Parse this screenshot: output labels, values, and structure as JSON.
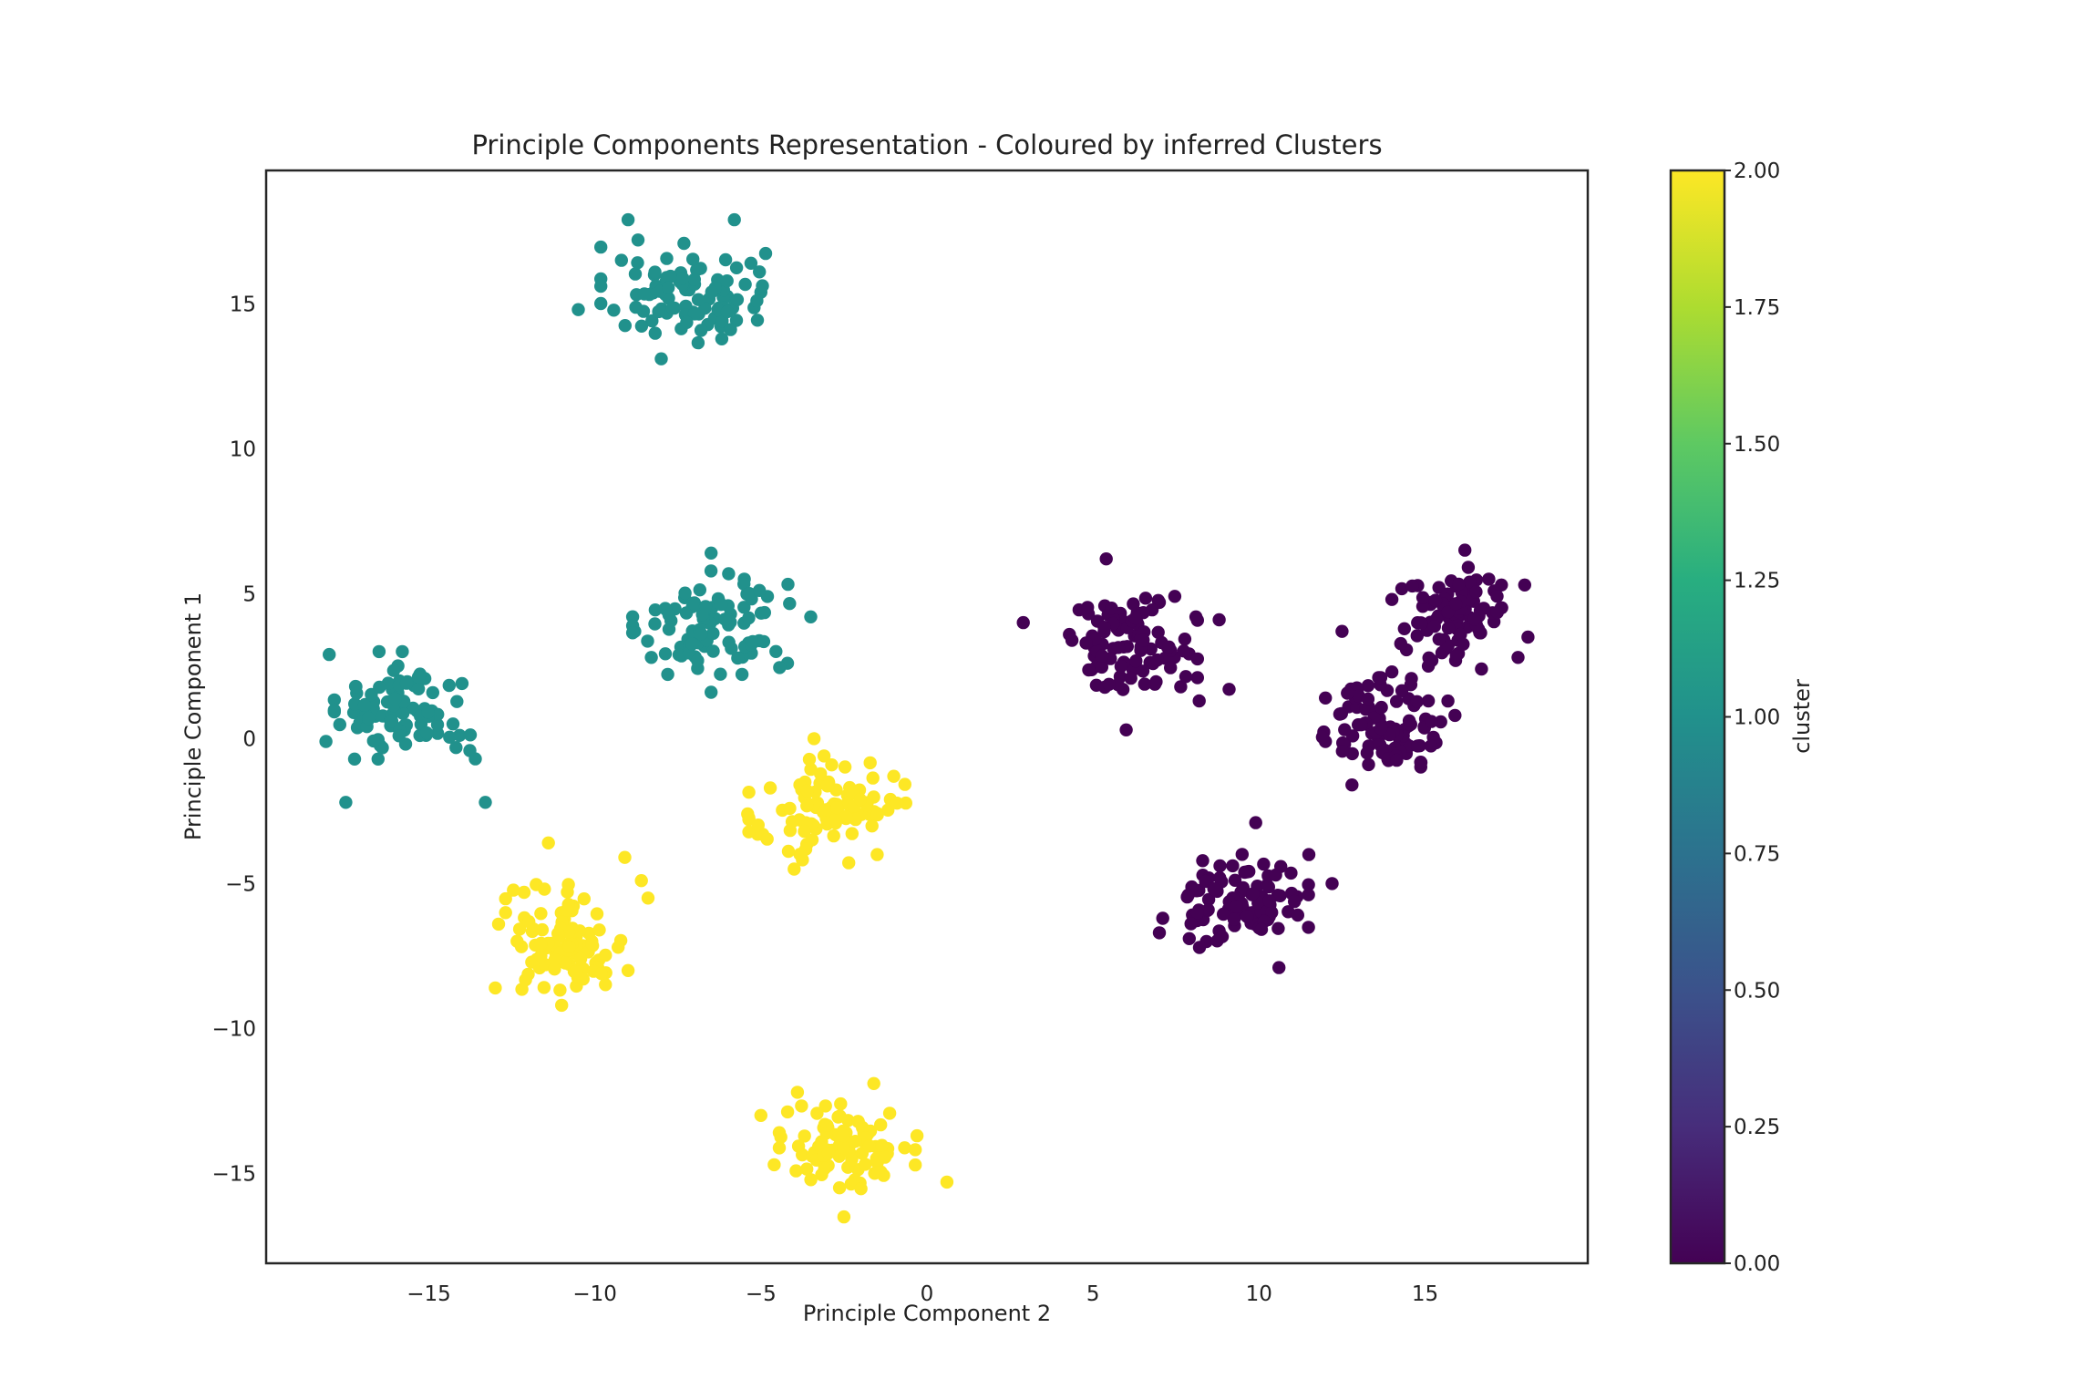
{
  "chart_data": {
    "type": "scatter",
    "title": "Principle Components Representation - Coloured by inferred Clusters",
    "xlabel": "Principle Component 2",
    "ylabel": "Principle Component 1",
    "xlim": [
      -19.9,
      19.9
    ],
    "ylim": [
      -18.1,
      19.6
    ],
    "xticks": [
      -15,
      -10,
      -5,
      0,
      5,
      10,
      15
    ],
    "xtick_labels": [
      "−15",
      "−10",
      "−5",
      "0",
      "5",
      "10",
      "15"
    ],
    "yticks": [
      -15,
      -10,
      -5,
      0,
      5,
      10,
      15
    ],
    "ytick_labels": [
      "−15",
      "−10",
      "−5",
      "0",
      "5",
      "10",
      "15"
    ],
    "grid": false,
    "colorbar": {
      "label": "cluster",
      "colormap": "viridis",
      "range": [
        0,
        2
      ],
      "ticks": [
        0,
        0.25,
        0.5,
        0.75,
        1,
        1.25,
        1.5,
        1.75,
        2
      ],
      "tick_labels": [
        "0.00",
        "0.25",
        "0.50",
        "0.75",
        "1.00",
        "1.25",
        "1.50",
        "1.75",
        "2.00"
      ]
    },
    "colors": {
      "cluster_0": "#440154",
      "cluster_1": "#21918c",
      "cluster_2": "#fde725"
    },
    "groups": [
      {
        "cluster": 1,
        "center": [
          -7.3,
          15.3
        ],
        "spread": [
          1.6,
          1.0
        ],
        "count": 100,
        "points": [
          [
            -9.0,
            17.9
          ],
          [
            -5.8,
            17.9
          ],
          [
            -10.5,
            14.8
          ],
          [
            -8.0,
            13.1
          ],
          [
            -8.7,
            17.2
          ],
          [
            -5.3,
            16.4
          ],
          [
            -5.0,
            15.4
          ],
          [
            -9.2,
            16.5
          ]
        ]
      },
      {
        "cluster": 1,
        "center": [
          -6.5,
          4.0
        ],
        "spread": [
          1.5,
          1.0
        ],
        "count": 100,
        "points": [
          [
            -6.5,
            6.4
          ],
          [
            -8.3,
            2.8
          ],
          [
            -3.5,
            4.2
          ],
          [
            -6.5,
            1.6
          ],
          [
            -4.2,
            2.6
          ],
          [
            -5.5,
            5.5
          ],
          [
            -8.8,
            3.7
          ]
        ]
      },
      {
        "cluster": 1,
        "center": [
          -15.8,
          0.9
        ],
        "spread": [
          1.3,
          0.9
        ],
        "count": 100,
        "points": [
          [
            -18.0,
            2.9
          ],
          [
            -17.5,
            -2.2
          ],
          [
            -13.3,
            -2.2
          ],
          [
            -14.0,
            1.9
          ],
          [
            -13.6,
            -0.7
          ],
          [
            -18.1,
            -0.1
          ],
          [
            -16.5,
            3.0
          ],
          [
            -15.8,
            3.0
          ]
        ]
      },
      {
        "cluster": 2,
        "center": [
          -3.0,
          -2.5
        ],
        "spread": [
          1.5,
          1.0
        ],
        "count": 100,
        "points": [
          [
            -3.4,
            0.0
          ],
          [
            -5.4,
            -2.6
          ],
          [
            -1.1,
            -2.1
          ],
          [
            -4.0,
            -4.5
          ],
          [
            -5.1,
            -3.3
          ],
          [
            -1.5,
            -4.0
          ],
          [
            -1.0,
            -1.3
          ],
          [
            -3.1,
            -0.6
          ]
        ]
      },
      {
        "cluster": 2,
        "center": [
          -10.8,
          -7.0
        ],
        "spread": [
          1.2,
          1.1
        ],
        "count": 100,
        "points": [
          [
            -11.4,
            -3.6
          ],
          [
            -13.0,
            -8.6
          ],
          [
            -9.1,
            -4.1
          ],
          [
            -8.4,
            -5.5
          ],
          [
            -9.0,
            -8.0
          ],
          [
            -11.0,
            -9.2
          ],
          [
            -12.9,
            -6.4
          ],
          [
            -8.6,
            -4.9
          ]
        ]
      },
      {
        "cluster": 2,
        "center": [
          -2.4,
          -14.1
        ],
        "spread": [
          1.3,
          0.8
        ],
        "count": 100,
        "points": [
          [
            -5.0,
            -13.0
          ],
          [
            -3.9,
            -12.2
          ],
          [
            0.6,
            -15.3
          ],
          [
            -4.6,
            -14.7
          ],
          [
            -1.6,
            -11.9
          ],
          [
            -2.5,
            -16.5
          ],
          [
            -0.3,
            -13.7
          ],
          [
            -2.6,
            -12.6
          ]
        ]
      },
      {
        "cluster": 0,
        "center": [
          6.1,
          3.3
        ],
        "spread": [
          1.3,
          0.9
        ],
        "count": 100,
        "points": [
          [
            2.9,
            4.0
          ],
          [
            5.4,
            6.2
          ],
          [
            6.0,
            0.3
          ],
          [
            8.2,
            1.3
          ],
          [
            9.1,
            1.7
          ],
          [
            8.8,
            4.1
          ],
          [
            8.1,
            4.2
          ],
          [
            7.0,
            4.7
          ]
        ]
      },
      {
        "cluster": 0,
        "center": [
          9.6,
          -5.6
        ],
        "spread": [
          1.2,
          0.9
        ],
        "count": 100,
        "points": [
          [
            9.9,
            -2.9
          ],
          [
            7.0,
            -6.7
          ],
          [
            10.6,
            -7.9
          ],
          [
            12.2,
            -5.0
          ],
          [
            11.5,
            -4.0
          ],
          [
            7.9,
            -6.9
          ],
          [
            7.1,
            -6.2
          ]
        ]
      },
      {
        "cluster": 0,
        "center": [
          13.8,
          0.5
        ],
        "spread": [
          1.2,
          0.9
        ],
        "count": 100,
        "points": [
          [
            12.5,
            3.7
          ],
          [
            12.8,
            -1.6
          ],
          [
            15.9,
            0.8
          ],
          [
            15.1,
            1.3
          ],
          [
            12.0,
            1.4
          ],
          [
            14.0,
            2.3
          ],
          [
            12.0,
            -0.1
          ]
        ]
      },
      {
        "cluster": 0,
        "center": [
          16.0,
          4.3
        ],
        "spread": [
          1.1,
          0.9
        ],
        "count": 100,
        "points": [
          [
            16.2,
            6.5
          ],
          [
            18.1,
            3.5
          ],
          [
            17.8,
            2.8
          ],
          [
            14.0,
            4.8
          ],
          [
            15.1,
            2.5
          ],
          [
            17.3,
            5.3
          ],
          [
            18.0,
            5.3
          ],
          [
            16.7,
            2.4
          ]
        ]
      }
    ]
  }
}
